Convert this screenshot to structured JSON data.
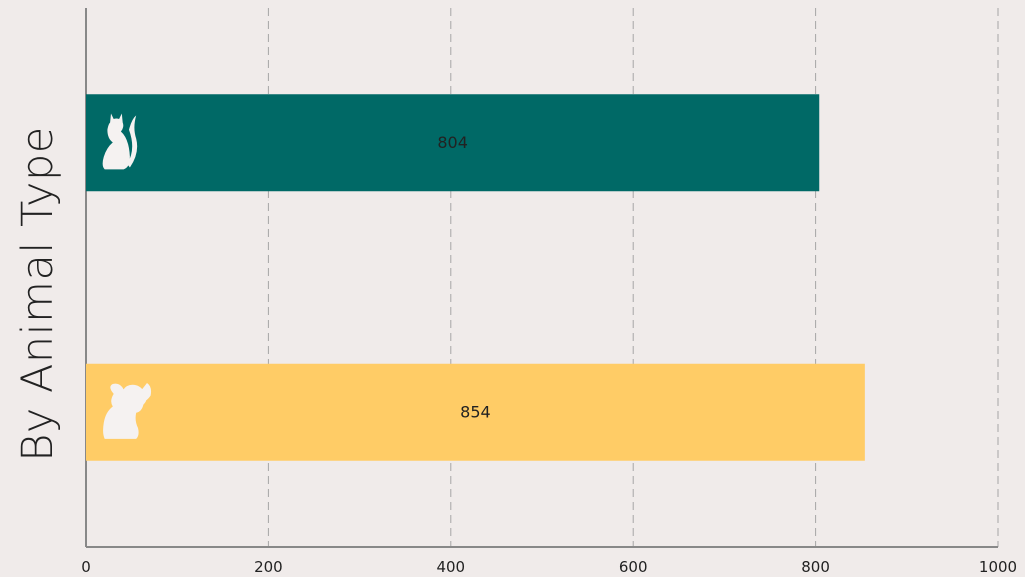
{
  "chart_data": {
    "type": "bar",
    "orientation": "horizontal",
    "categories": [
      "Cat",
      "Dog"
    ],
    "values": [
      804,
      854
    ],
    "data_labels": [
      "804",
      "854"
    ],
    "category_icons": [
      "cat-icon",
      "dog-icon"
    ],
    "colors": [
      "#006966",
      "#ffcc66"
    ],
    "title": "",
    "ylabel": "By Animal Type",
    "xlabel": "",
    "xlim": [
      0,
      1000
    ],
    "xticks": [
      0,
      200,
      400,
      600,
      800,
      1000
    ],
    "xtick_labels": [
      "0",
      "200",
      "400",
      "600",
      "800",
      "1000"
    ],
    "grid": "vertical-dashed",
    "legend": "none"
  },
  "colors": {
    "background": "#f0ebea",
    "grid": "#a6a6a6",
    "axis": "#888888",
    "text": "#222222",
    "icon": "#f5f2f1"
  }
}
